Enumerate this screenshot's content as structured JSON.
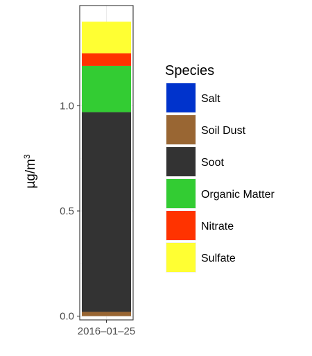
{
  "chart_data": {
    "type": "bar",
    "stacked": true,
    "categories": [
      "2016–01–25"
    ],
    "series": [
      {
        "name": "Salt",
        "values": [
          0.0
        ],
        "color": "#0033cc"
      },
      {
        "name": "Soil Dust",
        "values": [
          0.02
        ],
        "color": "#996633"
      },
      {
        "name": "Soot",
        "values": [
          0.95
        ],
        "color": "#333333"
      },
      {
        "name": "Organic Matter",
        "values": [
          0.22
        ],
        "color": "#33cc33"
      },
      {
        "name": "Nitrate",
        "values": [
          0.06
        ],
        "color": "#ff3300"
      },
      {
        "name": "Sulfate",
        "values": [
          0.15
        ],
        "color": "#ffff33"
      }
    ],
    "ylabel": "µg/m",
    "ylabel_superscript": "3",
    "ylim": [
      -0.01,
      1.46
    ],
    "yticks": [
      0.0,
      0.5,
      1.0
    ],
    "ytick_labels": [
      "0.0",
      "0.5",
      "1.0"
    ],
    "legend_title": "Species",
    "legend_position": "right",
    "grid": true
  }
}
